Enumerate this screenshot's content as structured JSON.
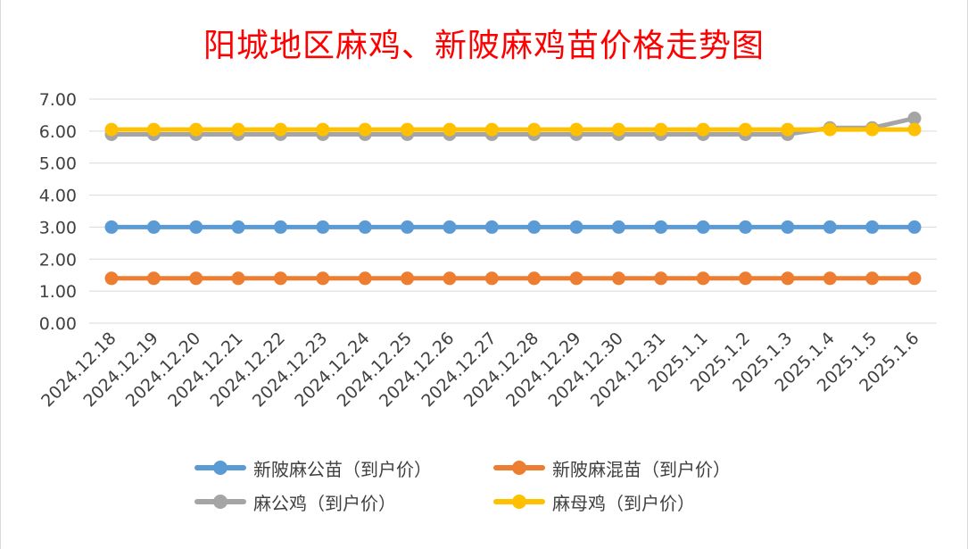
{
  "chart_data": {
    "type": "line",
    "title": "阳城地区麻鸡、新陂麻鸡苗价格走势图",
    "xlabel": "",
    "ylabel": "",
    "ylim": [
      0,
      7
    ],
    "yticks": [
      "0.00",
      "1.00",
      "2.00",
      "3.00",
      "4.00",
      "5.00",
      "6.00",
      "7.00"
    ],
    "grid": true,
    "legend_position": "bottom",
    "categories": [
      "2024.12.18",
      "2024.12.19",
      "2024.12.20",
      "2024.12.21",
      "2024.12.22",
      "2024.12.23",
      "2024.12.24",
      "2024.12.25",
      "2024.12.26",
      "2024.12.27",
      "2024.12.28",
      "2024.12.29",
      "2024.12.30",
      "2024.12.31",
      "2025.1.1",
      "2025.1.2",
      "2025.1.3",
      "2025.1.4",
      "2025.1.5",
      "2025.1.6"
    ],
    "series": [
      {
        "name": "新陂麻公苗（到户价）",
        "color": "#5b9bd5",
        "values": [
          3.0,
          3.0,
          3.0,
          3.0,
          3.0,
          3.0,
          3.0,
          3.0,
          3.0,
          3.0,
          3.0,
          3.0,
          3.0,
          3.0,
          3.0,
          3.0,
          3.0,
          3.0,
          3.0,
          3.0
        ]
      },
      {
        "name": "新陂麻混苗（到户价）",
        "color": "#ed7d31",
        "values": [
          1.4,
          1.4,
          1.4,
          1.4,
          1.4,
          1.4,
          1.4,
          1.4,
          1.4,
          1.4,
          1.4,
          1.4,
          1.4,
          1.4,
          1.4,
          1.4,
          1.4,
          1.4,
          1.4,
          1.4
        ]
      },
      {
        "name": "麻公鸡（到户价）",
        "color": "#a5a5a5",
        "values": [
          5.9,
          5.9,
          5.9,
          5.9,
          5.9,
          5.9,
          5.9,
          5.9,
          5.9,
          5.9,
          5.9,
          5.9,
          5.9,
          5.9,
          5.9,
          5.9,
          5.9,
          6.1,
          6.1,
          6.4
        ]
      },
      {
        "name": "麻母鸡（到户价）",
        "color": "#ffc000",
        "values": [
          6.05,
          6.05,
          6.05,
          6.05,
          6.05,
          6.05,
          6.05,
          6.05,
          6.05,
          6.05,
          6.05,
          6.05,
          6.05,
          6.05,
          6.05,
          6.05,
          6.05,
          6.05,
          6.05,
          6.05
        ]
      }
    ],
    "draw_order": [
      2,
      3,
      0,
      1
    ]
  }
}
